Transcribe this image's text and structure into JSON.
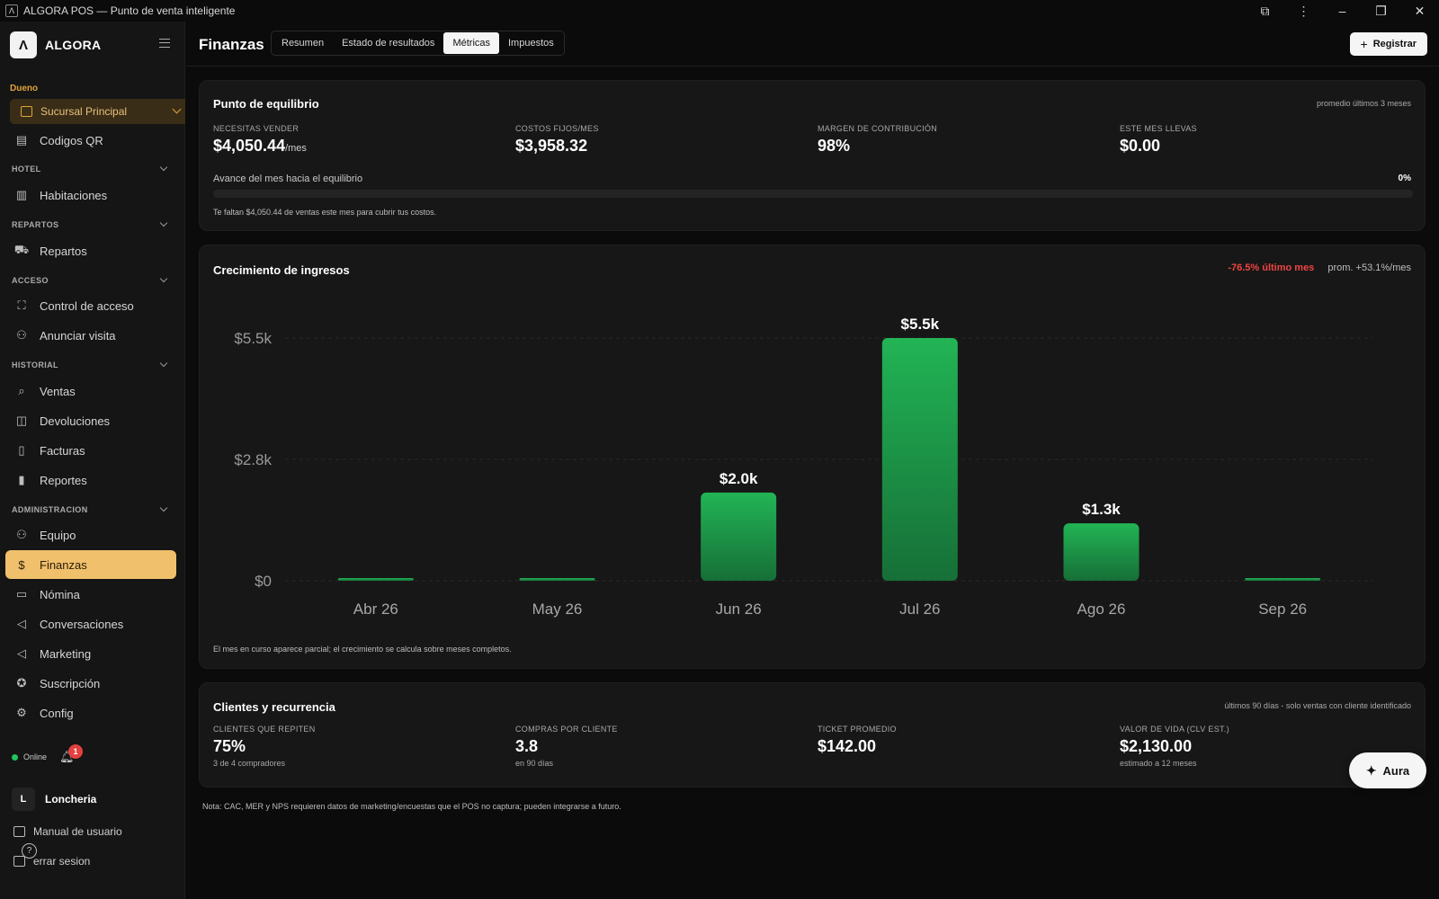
{
  "window": {
    "title": "ALGORA POS — Punto de venta inteligente",
    "app_icon": "Λ"
  },
  "sidebar": {
    "brand": "ALGORA",
    "role": "Dueno",
    "branch": "Sucursal Principal",
    "top_item": {
      "label": "Codigos QR",
      "icon": "qr-icon"
    },
    "sections": [
      {
        "title": "HOTEL",
        "items": [
          {
            "label": "Habitaciones",
            "icon": "building-icon"
          }
        ]
      },
      {
        "title": "REPARTOS",
        "items": [
          {
            "label": "Repartos",
            "icon": "truck-icon"
          }
        ]
      },
      {
        "title": "ACCESO",
        "items": [
          {
            "label": "Control de acceso",
            "icon": "scan-icon"
          },
          {
            "label": "Anunciar visita",
            "icon": "users-icon"
          }
        ]
      },
      {
        "title": "HISTORIAL",
        "items": [
          {
            "label": "Ventas",
            "icon": "search-icon"
          },
          {
            "label": "Devoluciones",
            "icon": "bag-icon"
          },
          {
            "label": "Facturas",
            "icon": "document-icon"
          },
          {
            "label": "Reportes",
            "icon": "bar-chart-icon"
          }
        ]
      },
      {
        "title": "ADMINISTRACION",
        "items": [
          {
            "label": "Equipo",
            "icon": "users-icon"
          },
          {
            "label": "Finanzas",
            "icon": "dollar-icon",
            "active": true
          },
          {
            "label": "Nómina",
            "icon": "card-icon"
          },
          {
            "label": "Conversaciones",
            "icon": "megaphone-icon"
          },
          {
            "label": "Marketing",
            "icon": "megaphone-icon"
          },
          {
            "label": "Suscripción",
            "icon": "badge-icon"
          },
          {
            "label": "Config",
            "icon": "gear-icon"
          }
        ]
      }
    ],
    "status": "Online",
    "notifications": "1",
    "user_initial": "L",
    "user_name": "Loncheria",
    "manual": "Manual de usuario",
    "logout": "errar sesion",
    "help": "?"
  },
  "header": {
    "title": "Finanzas",
    "tabs": [
      "Resumen",
      "Estado de resultados",
      "Métricas",
      "Impuestos"
    ],
    "active_tab": "Métricas",
    "register_label": "Registrar"
  },
  "breakeven": {
    "title": "Punto de equilibrio",
    "note": "promedio últimos 3 meses",
    "kpis": [
      {
        "label": "NECESITAS VENDER",
        "value": "$4,050.44",
        "unit": "/mes"
      },
      {
        "label": "COSTOS FIJOS/MES",
        "value": "$3,958.32"
      },
      {
        "label": "MARGEN DE CONTRIBUCIÓN",
        "value": "98%"
      },
      {
        "label": "ESTE MES LLEVAS",
        "value": "$0.00"
      }
    ],
    "progress_label": "Avance del mes hacia el equilibrio",
    "progress_pct": "0%",
    "progress_value": 0,
    "progress_note": "Te faltan $4,050.44 de ventas este mes para cubrir tus costos."
  },
  "growth": {
    "title": "Crecimiento de ingresos",
    "last_month": "-76.5% último mes",
    "avg": "prom. +53.1%/mes",
    "footnote": "El mes en curso aparece parcial; el crecimiento se calcula sobre meses completos."
  },
  "chart_data": {
    "type": "bar",
    "categories": [
      "Abr 26",
      "May 26",
      "Jun 26",
      "Jul 26",
      "Ago 26",
      "Sep 26"
    ],
    "values": [
      30,
      30,
      2000,
      5500,
      1300,
      30
    ],
    "data_labels": [
      "",
      "",
      "$2.0k",
      "$5.5k",
      "$1.3k",
      ""
    ],
    "yticks": [
      0,
      2750,
      5500
    ],
    "ytick_labels": [
      "$0",
      "$2.8k",
      "$5.5k"
    ],
    "ylim": [
      0,
      5500
    ],
    "grid": true,
    "colors": {
      "bar_top": "#22b455",
      "bar_bottom": "#166f37"
    }
  },
  "clients": {
    "title": "Clientes y recurrencia",
    "note": "últimos 90 días - solo ventas con cliente identificado",
    "kpis": [
      {
        "label": "CLIENTES QUE REPITEN",
        "value": "75%",
        "sub": "3 de 4 compradores"
      },
      {
        "label": "COMPRAS POR CLIENTE",
        "value": "3.8",
        "sub": "en 90 días"
      },
      {
        "label": "TICKET PROMEDIO",
        "value": "$142.00",
        "sub": ""
      },
      {
        "label": "VALOR DE VIDA (CLV EST.)",
        "value": "$2,130.00",
        "sub": "estimado a 12 meses"
      }
    ]
  },
  "footer_note": "Nota: CAC, MER y NPS requieren datos de marketing/encuestas que el POS no captura; pueden integrarse a futuro.",
  "aura_label": "Aura"
}
